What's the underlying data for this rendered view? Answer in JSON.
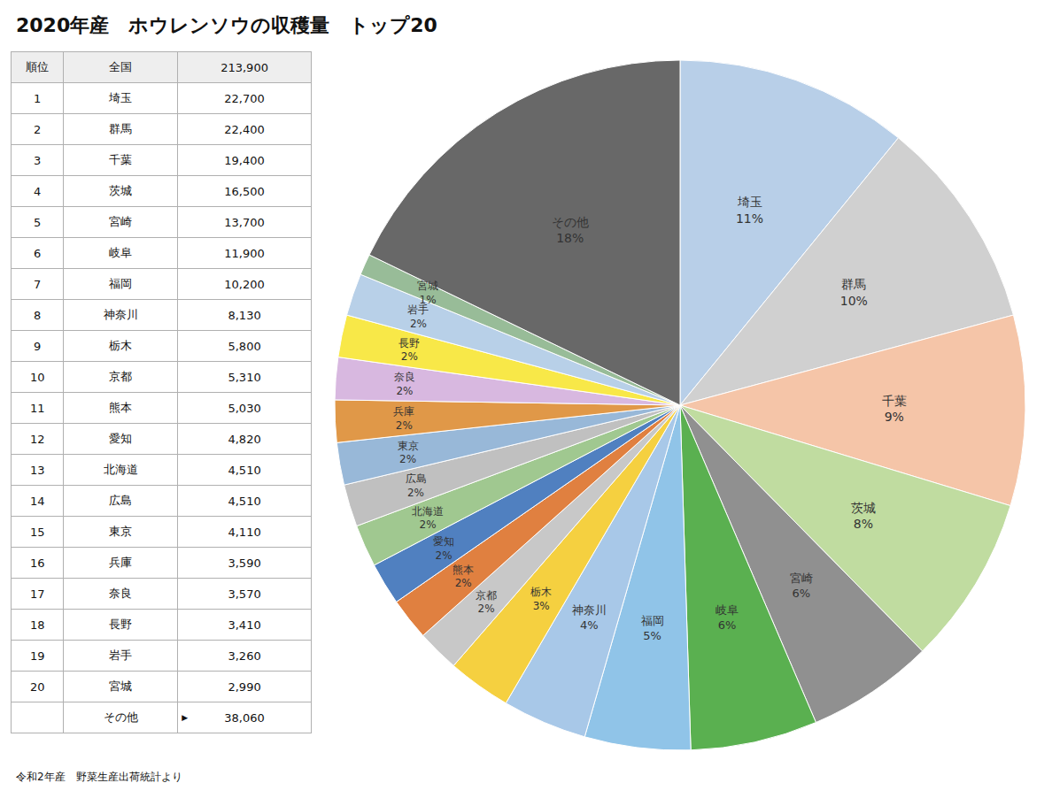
{
  "chart_data": [
    {
      "type": "pie",
      "title": "2020年産　ホウレンソウの収穫量　トップ20",
      "subtitle": "令和2年産　野菜生産出荷統計より",
      "categories": [
        "埼玉",
        "群馬",
        "千葉",
        "茨城",
        "宮崎",
        "岐阜",
        "福岡",
        "神奈川",
        "栃木",
        "京都",
        "熊本",
        "愛知",
        "北海道",
        "広島",
        "東京",
        "兵庫",
        "奈良",
        "長野",
        "岩手",
        "宮城",
        "その他"
      ],
      "values": [
        11,
        10,
        9,
        8,
        6,
        6,
        5,
        4,
        3,
        2,
        2,
        2,
        2,
        2,
        2,
        2,
        2,
        2,
        2,
        1,
        18
      ],
      "value_labels": [
        "11%",
        "10%",
        "9%",
        "8%",
        "6%",
        "6%",
        "5%",
        "4%",
        "3%",
        "2%",
        "2%",
        "2%",
        "2%",
        "2%",
        "2%",
        "2%",
        "2%",
        "2%",
        "2%",
        "1%",
        "18%"
      ],
      "data_labels": true,
      "colors": [
        "#b8cfe8",
        "#d0d0d0",
        "#f5c5a8",
        "#c0dca0",
        "#909090",
        "#5ab050",
        "#90c4e8",
        "#a8c8e8",
        "#f5d040",
        "#c8c8c8",
        "#e08040",
        "#5080c0",
        "#a0c890",
        "#c0c0c0",
        "#98b8d8",
        "#e09848",
        "#d8b8e0",
        "#f8e848",
        "#b8d0e8",
        "#98bc98",
        "#686868"
      ]
    },
    {
      "type": "table",
      "columns": [
        "順位",
        "全国",
        "213,900"
      ],
      "ranks": [
        1,
        2,
        3,
        4,
        5,
        6,
        7,
        8,
        9,
        10,
        11,
        12,
        13,
        14,
        15,
        16,
        17,
        18,
        19,
        20,
        null
      ],
      "categories": [
        "埼玉",
        "群馬",
        "千葉",
        "茨城",
        "宮崎",
        "岐阜",
        "福岡",
        "神奈川",
        "栃木",
        "京都",
        "熊本",
        "愛知",
        "北海道",
        "広島",
        "東京",
        "兵庫",
        "奈良",
        "長野",
        "岩手",
        "宮城",
        "その他"
      ],
      "values": [
        22700,
        22400,
        19400,
        16500,
        13700,
        11900,
        10200,
        8130,
        5800,
        5310,
        5030,
        4820,
        4510,
        4510,
        4110,
        3590,
        3570,
        3410,
        3260,
        2990,
        38060
      ],
      "value_labels": [
        "22,700",
        "22,400",
        "19,400",
        "16,500",
        "13,700",
        "11,900",
        "10,200",
        "8,130",
        "5,800",
        "5,310",
        "5,030",
        "4,820",
        "4,510",
        "4,510",
        "4,110",
        "3,590",
        "3,570",
        "3,410",
        "3,260",
        "2,990",
        "38,060"
      ],
      "annotations": [
        {
          "text": "▶",
          "category": "その他"
        }
      ]
    }
  ]
}
